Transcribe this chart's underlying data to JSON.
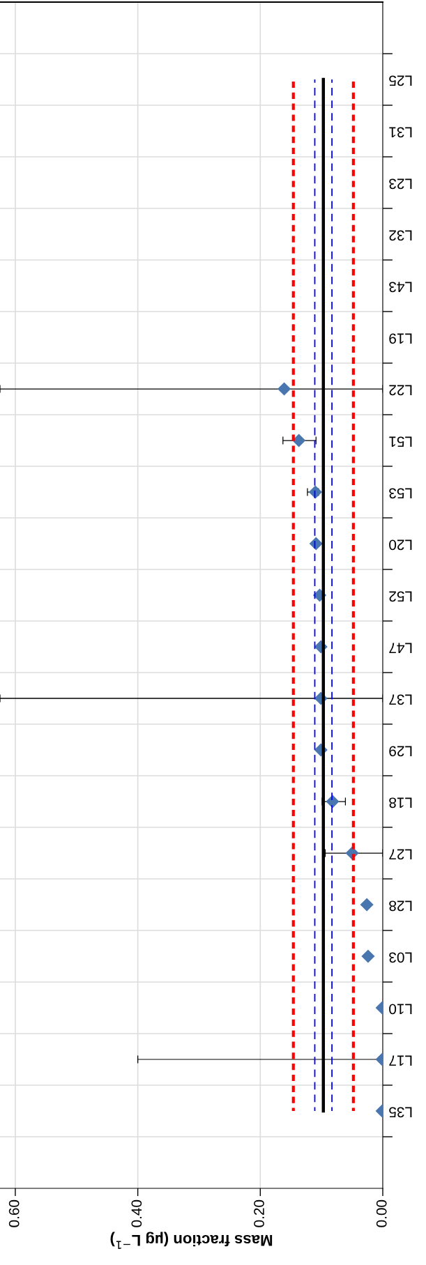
{
  "chart_data": {
    "type": "scatter",
    "orientation": "horizontal",
    "xlabel": "Mass fraction (µg L$^{−1}$)",
    "categories": [
      null,
      "L25",
      "L31",
      "L23",
      "L32",
      "L43",
      "L19",
      "L22",
      "L51",
      "L53",
      "L20",
      "L52",
      "L47",
      "L37",
      "L29",
      "L18",
      "L27",
      "L28",
      "L03",
      "L10",
      "L17",
      "L35",
      null
    ],
    "xlim": [
      0.625,
      0
    ],
    "xticks": [
      {
        "value": 0.6,
        "label": "0.60"
      },
      {
        "value": 0.4,
        "label": "0.40"
      },
      {
        "value": 0.2,
        "label": "0.20"
      },
      {
        "value": 0,
        "label": "0.00"
      }
    ],
    "grid": true,
    "series": [
      {
        "type": "line",
        "color": "#ff0000",
        "line_style": "dotted",
        "values": [
          null,
          0.146,
          0.146,
          0.146,
          0.146,
          0.146,
          0.146,
          0.146,
          0.146,
          0.146,
          0.146,
          0.146,
          0.146,
          0.146,
          0.146,
          0.146,
          0.146,
          0.146,
          0.146,
          0.146,
          0.146,
          0.146,
          null
        ]
      },
      {
        "type": "line",
        "color": "#ff0000",
        "line_style": "dotted",
        "values": [
          null,
          0.048,
          0.048,
          0.048,
          0.048,
          0.048,
          0.048,
          0.048,
          0.048,
          0.048,
          0.048,
          0.048,
          0.048,
          0.048,
          0.048,
          0.048,
          0.048,
          0.048,
          0.048,
          0.048,
          0.048,
          0.048,
          null
        ]
      },
      {
        "type": "line",
        "color": "#0000ff",
        "line_style": "dashed",
        "values": [
          null,
          0.111,
          0.111,
          0.111,
          0.111,
          0.111,
          0.111,
          0.111,
          0.111,
          0.111,
          0.111,
          0.111,
          0.111,
          0.111,
          0.111,
          0.111,
          0.111,
          0.111,
          0.111,
          0.111,
          0.111,
          0.111,
          null
        ]
      },
      {
        "type": "line",
        "color": "#0000ff",
        "line_style": "dashed",
        "values": [
          null,
          0.083,
          0.083,
          0.083,
          0.083,
          0.083,
          0.083,
          0.083,
          0.083,
          0.083,
          0.083,
          0.083,
          0.083,
          0.083,
          0.083,
          0.083,
          0.083,
          0.083,
          0.083,
          0.083,
          0.083,
          0.083,
          null
        ]
      },
      {
        "type": "line",
        "color": "#000000",
        "line_style": "solid",
        "values": [
          null,
          0.097,
          0.097,
          0.097,
          0.097,
          0.097,
          0.097,
          0.097,
          0.097,
          0.097,
          0.097,
          0.097,
          0.097,
          0.097,
          0.097,
          0.097,
          0.097,
          0.097,
          0.097,
          0.097,
          0.097,
          0.097,
          null
        ]
      },
      {
        "color": "#4a76b0",
        "marker": "diamond",
        "values": [
          null,
          null,
          null,
          null,
          null,
          null,
          null,
          0.161,
          0.137,
          0.11,
          0.109,
          0.103,
          0.101,
          0.101,
          0.101,
          0.082,
          0.05,
          0.026,
          0.024,
          0.001,
          0.001,
          0.001,
          null
        ],
        "errors": [
          null,
          null,
          null,
          null,
          null,
          null,
          null,
          [
            0,
            0.625
          ],
          [
            0.109,
            0.163
          ],
          [
            0.105,
            0.123
          ],
          null,
          null,
          null,
          [
            0,
            0.625
          ],
          null,
          [
            0.061,
            0.099
          ],
          [
            0,
            0.094
          ],
          null,
          null,
          null,
          [
            0,
            0.4
          ],
          null,
          null
        ]
      }
    ]
  }
}
